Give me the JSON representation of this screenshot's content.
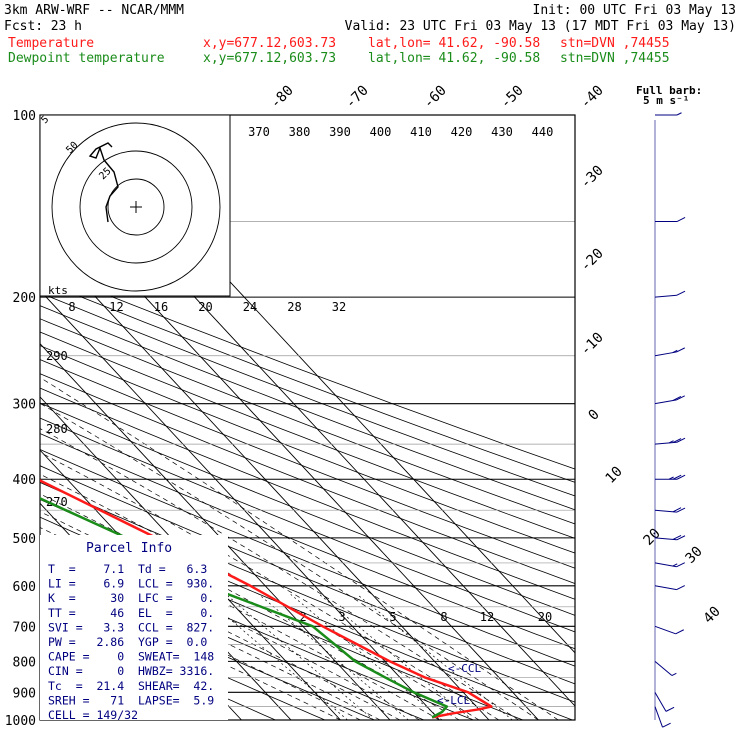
{
  "header": {
    "model": "3km ARW-WRF -- NCAR/MMM",
    "init": "Init: 00 UTC Fri 03 May 13",
    "fcst_label": "Fcst:",
    "fcst_value": "23 h",
    "valid": "Valid: 23 UTC Fri 03 May 13 (17 MDT Fri 03 May 13)",
    "temp_label": "Temperature",
    "dew_label": "Dewpoint temperature",
    "xy": "x,y=677.12,603.73",
    "latlon": "lat,lon= 41.62, -90.58",
    "stn": "stn=DVN ,74455",
    "full_barb_line1": "Full barb:",
    "full_barb_line2": "5 m s⁻¹"
  },
  "colors": {
    "temperature": "#ff1a1a",
    "dewpoint": "#1a8c1a",
    "navy": "#000080",
    "grid": "#000000"
  },
  "chart_data": {
    "type": "line",
    "title": "",
    "pressure_levels": [
      100,
      200,
      300,
      400,
      500,
      600,
      700,
      800,
      900,
      1000
    ],
    "pressure_grid": [
      100,
      150,
      200,
      250,
      300,
      350,
      400,
      450,
      500,
      550,
      600,
      650,
      700,
      750,
      800,
      850,
      900,
      950,
      1000
    ],
    "isotherm_labels": [
      -80,
      -70,
      -60,
      -50,
      -40,
      -30,
      -20,
      -10,
      0,
      10,
      20,
      30,
      40
    ],
    "mixing_ratio_labels": [
      "2",
      "3",
      "5",
      "8",
      "12",
      "20"
    ],
    "series": [
      {
        "name": "Temperature",
        "points": [
          [
            100,
            -59
          ],
          [
            150,
            -59
          ],
          [
            200,
            -60
          ],
          [
            250,
            -50
          ],
          [
            300,
            -40
          ],
          [
            400,
            -26
          ],
          [
            500,
            -13
          ],
          [
            600,
            -3
          ],
          [
            700,
            4
          ],
          [
            800,
            11
          ],
          [
            850,
            15
          ],
          [
            900,
            21
          ],
          [
            950,
            23
          ],
          [
            960,
            20
          ],
          [
            975,
            14
          ],
          [
            990,
            9
          ]
        ]
      },
      {
        "name": "Dewpoint temperature",
        "points": [
          [
            100,
            -72
          ],
          [
            150,
            -74
          ],
          [
            180,
            -84
          ],
          [
            200,
            -78
          ],
          [
            250,
            -68
          ],
          [
            300,
            -58
          ],
          [
            400,
            -34
          ],
          [
            500,
            -19
          ],
          [
            600,
            -12
          ],
          [
            700,
            2
          ],
          [
            800,
            4
          ],
          [
            850,
            7
          ],
          [
            900,
            10
          ],
          [
            950,
            14
          ],
          [
            970,
            12
          ],
          [
            990,
            9
          ]
        ]
      }
    ],
    "hodograph": {
      "units": "kts",
      "ring_labels": [
        "25",
        "50"
      ],
      "axis_labels": [
        "8",
        "12",
        "16",
        "20",
        "24",
        "28",
        "32"
      ]
    },
    "theta_labels": [
      "370",
      "380",
      "390",
      "400",
      "410",
      "420",
      "430",
      "440"
    ],
    "theta_left_labels": [
      "290",
      "280",
      "270"
    ],
    "wind_barbs": [
      {
        "p": 100,
        "dir": 270,
        "spd": 5
      },
      {
        "p": 150,
        "dir": 270,
        "spd": 10
      },
      {
        "p": 200,
        "dir": 275,
        "spd": 10
      },
      {
        "p": 250,
        "dir": 280,
        "spd": 15
      },
      {
        "p": 300,
        "dir": 280,
        "spd": 20
      },
      {
        "p": 350,
        "dir": 275,
        "spd": 25
      },
      {
        "p": 400,
        "dir": 270,
        "spd": 25
      },
      {
        "p": 450,
        "dir": 265,
        "spd": 20
      },
      {
        "p": 500,
        "dir": 265,
        "spd": 20
      },
      {
        "p": 550,
        "dir": 260,
        "spd": 15
      },
      {
        "p": 600,
        "dir": 260,
        "spd": 10
      },
      {
        "p": 700,
        "dir": 250,
        "spd": 10
      },
      {
        "p": 800,
        "dir": 230,
        "spd": 5
      },
      {
        "p": 900,
        "dir": 210,
        "spd": 10
      },
      {
        "p": 950,
        "dir": 200,
        "spd": 10
      }
    ],
    "annotations": {
      "ccl": "<-CCL",
      "lcl": "<-LCL"
    }
  },
  "parcel_info": {
    "title": "Parcel Info",
    "rows": [
      "T  =    7.1  Td =   6.3",
      "LI =    6.9  LCL =  930.",
      "K  =     30  LFC =    0.",
      "TT =     46  EL  =    0.",
      "SVI =   3.3  CCL =  827.",
      "PW =   2.86  YGP =  0.0",
      "CAPE =    0  SWEAT=  148",
      "CIN =     0  HWBZ= 3316.",
      "Tc  =  21.4  SHEAR=  42.",
      "SREH =   71  LAPSE=  5.9",
      "CELL = 149/32"
    ]
  }
}
